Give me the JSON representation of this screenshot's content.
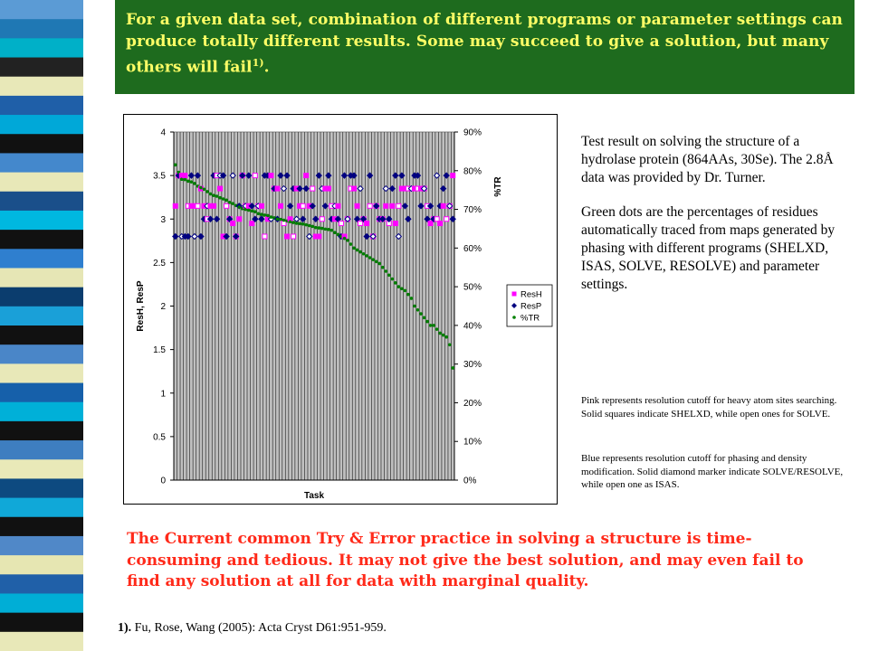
{
  "header": {
    "text": "For a given data set, combination of different programs or parameter settings can produce totally different results.  Some may succeed to give a solution, but many others will fail",
    "sup": "1)",
    "end": "."
  },
  "description": {
    "p1": "Test result on solving the structure of a hydrolase protein (864AAs, 30Se).  The 2.8Å data was provided by Dr. Turner.",
    "p2": "Green dots are the percentages of residues automatically traced from maps generated by phasing with different programs (SHELXD, ISAS, SOLVE, RESOLVE) and parameter settings."
  },
  "notes": {
    "pink": "Pink represents resolution cutoff for heavy atom sites searching. Solid squares indicate SHELXD,  while open ones for SOLVE.",
    "blue": "Blue represents resolution cutoff for phasing and density modification. Solid diamond marker indicate SOLVE/RESOLVE,  while open one as ISAS."
  },
  "conclusion": "The Current common Try & Error practice in solving a structure is time-consuming and tedious.  It may not give the best solution, and may even fail to find any solution at all for data with marginal quality.",
  "footnote": {
    "num": "1).",
    "text": "Fu, Rose, Wang (2005): Acta Cryst D61:951-959."
  },
  "colors": {
    "header_bg": "#1e6b1e",
    "header_text": "#ffff66",
    "conclusion_text": "#ff2a1a",
    "resh": "#ff00ff",
    "resp": "#000080",
    "tr": "#008000",
    "plot_bg": "#c0c0c0"
  },
  "stripes": [
    "#5b9bd5",
    "#1f78b4",
    "#00b0c8",
    "#222222",
    "#e8e8b8",
    "#1f5fa8",
    "#00a8d8",
    "#111111",
    "#4488cc",
    "#e8e8b8",
    "#1a4f8a",
    "#00b8e0",
    "#111111",
    "#2f7fcf",
    "#e6e6b5",
    "#0b3d6e",
    "#1aa0d8",
    "#111111",
    "#4a86c8",
    "#e8e8b8",
    "#1660aa",
    "#00b0d8",
    "#111111",
    "#3e7ec0",
    "#e9e9b8",
    "#0d4a80",
    "#10a8d8",
    "#111111",
    "#5088c8",
    "#e6e6b2",
    "#2060a8",
    "#00aed6",
    "#111111",
    "#e8e8b8"
  ],
  "chart_data": {
    "type": "scatter",
    "xlabel": "Task",
    "ylabel": "ResH, ResP",
    "y2label": "%TR",
    "ylim": [
      0,
      4
    ],
    "yticks": [
      "0",
      "0.5",
      "1",
      "1.5",
      "2",
      "2.5",
      "3",
      "3.5",
      "4"
    ],
    "y2lim": [
      0,
      90
    ],
    "y2ticks": [
      "0%",
      "10%",
      "20%",
      "30%",
      "40%",
      "50%",
      "60%",
      "70%",
      "80%",
      "90%"
    ],
    "legend": [
      "ResH",
      "ResP",
      "%TR"
    ],
    "legend_position": "right",
    "grid": "vertical bars",
    "n_tasks": 88,
    "series": [
      {
        "name": "ResH",
        "values": [
          3.15,
          3.5,
          3.5,
          3.5,
          3.15,
          3.15,
          3.15,
          3.15,
          3.35,
          3.15,
          3.0,
          3.15,
          3.15,
          3.5,
          3.35,
          2.8,
          3.15,
          3.0,
          2.95,
          2.8,
          3.0,
          3.5,
          3.15,
          3.15,
          2.95,
          3.5,
          3.15,
          3.15,
          2.8,
          3.0,
          3.5,
          3.35,
          3.35,
          3.15,
          2.95,
          2.8,
          3.0,
          2.8,
          3.35,
          3.15,
          3.15,
          3.5,
          3.15,
          3.35,
          2.8,
          2.8,
          3.0,
          3.35,
          3.35,
          3.15,
          3.0,
          3.15,
          2.95,
          2.8,
          3.0,
          3.35,
          3.35,
          3.15,
          2.95,
          3.0,
          2.95,
          3.15,
          2.8,
          3.15,
          3.0,
          3.0,
          3.15,
          2.95,
          3.15,
          2.95,
          3.15,
          3.35,
          3.35,
          3.35,
          3.35,
          3.35,
          3.35,
          3.35,
          3.35,
          3.15,
          2.95,
          3.0,
          3.0,
          2.95,
          3.15,
          3.0,
          3.15,
          3.5
        ]
      },
      {
        "name": "ResP",
        "values": [
          2.8,
          3.5,
          2.8,
          2.8,
          2.8,
          3.5,
          2.8,
          3.5,
          2.8,
          3.0,
          3.15,
          3.0,
          3.5,
          3.0,
          3.5,
          3.5,
          2.8,
          3.0,
          3.5,
          2.8,
          3.15,
          3.5,
          3.15,
          3.5,
          3.15,
          3.0,
          3.15,
          3.0,
          3.5,
          3.5,
          3.0,
          3.35,
          3.0,
          3.5,
          3.35,
          3.5,
          3.15,
          3.35,
          3.0,
          3.35,
          3.0,
          3.35,
          2.8,
          3.15,
          3.0,
          3.5,
          3.35,
          3.15,
          3.5,
          3.0,
          3.15,
          3.0,
          2.8,
          3.5,
          3.0,
          3.5,
          3.5,
          3.0,
          3.35,
          3.0,
          2.8,
          3.5,
          2.8,
          3.15,
          3.0,
          3.0,
          3.35,
          3.0,
          3.35,
          3.5,
          2.8,
          3.5,
          3.15,
          3.0,
          3.35,
          3.5,
          3.5,
          3.15,
          3.35,
          3.0,
          3.15,
          3.0,
          3.5,
          3.15,
          3.35,
          3.5,
          3.15,
          3.0
        ]
      },
      {
        "name": "%TR",
        "values": [
          81.5,
          79.6,
          77.8,
          77.7,
          77.3,
          77.1,
          76.7,
          76.0,
          75.6,
          75.2,
          74.6,
          74.0,
          73.6,
          73.4,
          73.0,
          72.7,
          72.4,
          71.8,
          71.5,
          71.0,
          70.6,
          70.2,
          70.0,
          69.8,
          69.6,
          69.4,
          68.9,
          68.7,
          68.5,
          68.4,
          68.0,
          67.8,
          67.5,
          67.4,
          67.2,
          67.0,
          66.8,
          66.6,
          66.4,
          66.3,
          66.2,
          66.0,
          65.8,
          65.6,
          65.3,
          65.2,
          65.1,
          64.9,
          64.8,
          64.6,
          64.0,
          63.5,
          63.0,
          62.5,
          62.0,
          61.0,
          60.0,
          59.5,
          59.0,
          58.5,
          58.0,
          57.5,
          57.0,
          56.5,
          56.0,
          55.0,
          54.0,
          53.0,
          52.0,
          51.0,
          50.0,
          49.5,
          49.0,
          48.0,
          47.0,
          45.0,
          44.0,
          43.0,
          42.0,
          41.0,
          40.0,
          40.0,
          39.0,
          38.0,
          37.5,
          37.0,
          35.0,
          29.0
        ]
      }
    ]
  }
}
